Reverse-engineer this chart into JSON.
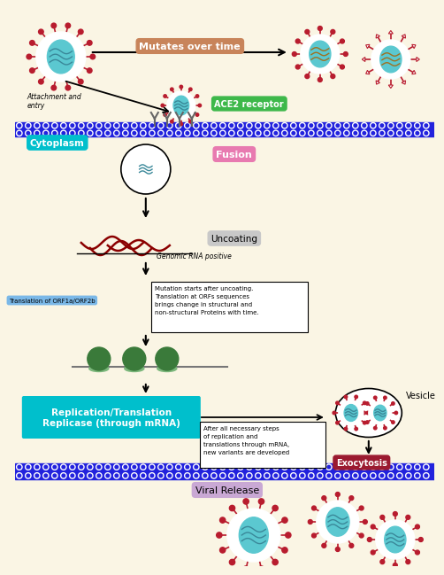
{
  "bg_color": "#faf5e4",
  "membrane_blue": "#2222dd",
  "virus_red": "#b81c2e",
  "virus_teal": "#5bc8d0",
  "virus_white": "#ffffff",
  "labels": {
    "mutates_over_time": "Mutates over time",
    "attachment_and_entry": "Attachment and\nentry",
    "ace2_receptor": "ACE2 receptor",
    "cytoplasm": "Cytoplasm",
    "fusion": "Fusion",
    "uncoating": "Uncoating",
    "genomic_rna": "Genomic RNA positive",
    "translation_orf": "Translation of ORF1a/ORF2b",
    "mutation_box": "Mutation starts after uncoating.\nTranslation at ORFs sequences\nbrings change in structural and\nnon-structural Proteins with time.",
    "replication": "Replication/Translation\nReplicase (through mRNA)",
    "vesicle_box": "After all necessary steps\nof replication and\ntranslations through mRNA,\nnew variants are developed",
    "vesicle": "Vesicle",
    "exocytosis": "Exocytosis",
    "viral_release": "Viral Release"
  },
  "colors": {
    "mutates_box": "#c8845a",
    "ace2_box": "#3db84a",
    "cytoplasm_box": "#00bfcc",
    "fusion_box": "#e87ab0",
    "uncoating_box": "#c0c0c0",
    "translation_box": "#7ab8e8",
    "replication_box": "#00bfcc",
    "exocytosis_box": "#9b1a30",
    "viral_release_box": "#c9a8d4"
  }
}
